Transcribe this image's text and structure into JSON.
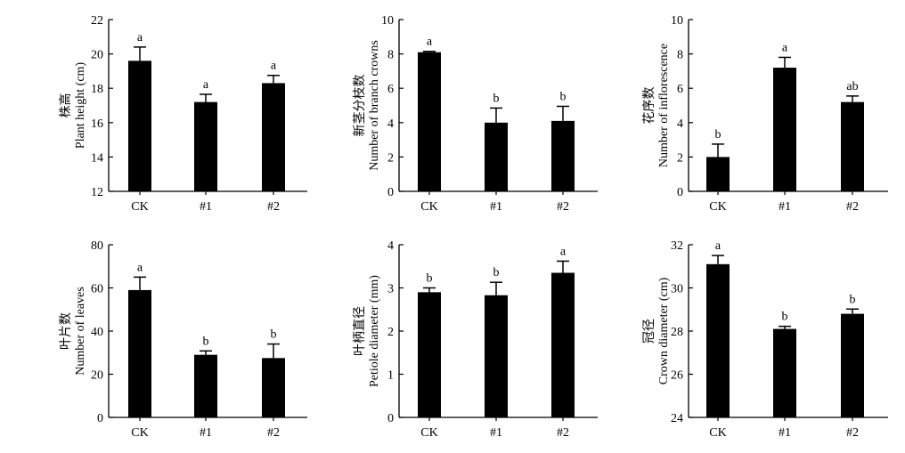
{
  "chart_data": [
    {
      "type": "bar",
      "ylabel_zh": "株高",
      "ylabel": "Plant height (cm)",
      "categories": [
        "CK",
        "#1",
        "#2"
      ],
      "values": [
        19.6,
        17.2,
        18.3
      ],
      "errors": [
        0.8,
        0.45,
        0.45
      ],
      "letters": [
        "a",
        "a",
        "a"
      ],
      "ylim": [
        12,
        22
      ],
      "yticks": [
        12,
        14,
        16,
        18,
        20,
        22
      ]
    },
    {
      "type": "bar",
      "ylabel_zh": "新茎分枝数",
      "ylabel": "Number of branch crowns",
      "categories": [
        "CK",
        "#1",
        "#2"
      ],
      "values": [
        8.1,
        4.0,
        4.1
      ],
      "errors": [
        0.05,
        0.85,
        0.85
      ],
      "letters": [
        "a",
        "b",
        "b"
      ],
      "ylim": [
        0,
        10
      ],
      "yticks": [
        0,
        2,
        4,
        6,
        8,
        10
      ]
    },
    {
      "type": "bar",
      "ylabel_zh": "花序数",
      "ylabel": "Number of inflorescence",
      "categories": [
        "CK",
        "#1",
        "#2"
      ],
      "values": [
        2.0,
        7.2,
        5.2
      ],
      "errors": [
        0.75,
        0.6,
        0.35
      ],
      "letters": [
        "b",
        "a",
        "ab"
      ],
      "ylim": [
        0,
        10
      ],
      "yticks": [
        0,
        2,
        4,
        6,
        8,
        10
      ]
    },
    {
      "type": "bar",
      "ylabel_zh": "叶片数",
      "ylabel": "Number of leaves",
      "categories": [
        "CK",
        "#1",
        "#2"
      ],
      "values": [
        59,
        29,
        27.5
      ],
      "errors": [
        6,
        1.8,
        6.5
      ],
      "letters": [
        "a",
        "b",
        "b"
      ],
      "ylim": [
        0,
        80
      ],
      "yticks": [
        0,
        20,
        40,
        60,
        80
      ]
    },
    {
      "type": "bar",
      "ylabel_zh": "叶柄直径",
      "ylabel": "Petiole diameter (mm)",
      "categories": [
        "CK",
        "#1",
        "#2"
      ],
      "values": [
        2.9,
        2.83,
        3.35
      ],
      "errors": [
        0.1,
        0.3,
        0.27
      ],
      "letters": [
        "b",
        "b",
        "a"
      ],
      "ylim": [
        0,
        4
      ],
      "yticks": [
        0,
        1,
        2,
        3,
        4
      ]
    },
    {
      "type": "bar",
      "ylabel_zh": "冠径",
      "ylabel": "Crown diameter (cm)",
      "categories": [
        "CK",
        "#1",
        "#2"
      ],
      "values": [
        31.1,
        28.1,
        28.8
      ],
      "errors": [
        0.4,
        0.12,
        0.22
      ],
      "letters": [
        "a",
        "b",
        "b"
      ],
      "ylim": [
        24,
        32
      ],
      "yticks": [
        24,
        26,
        28,
        30,
        32
      ]
    }
  ]
}
